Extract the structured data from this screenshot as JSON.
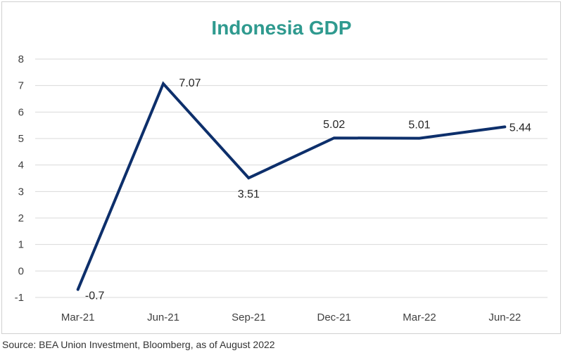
{
  "colors": {
    "title": "#2f9a8f",
    "line": "#0d2f6b",
    "grid": "#d9d9d9",
    "text": "#404040"
  },
  "source": "Source: BEA Union Investment, Bloomberg, as of August 2022",
  "chart_data": {
    "type": "line",
    "title": "Indonesia GDP",
    "xlabel": "",
    "ylabel": "",
    "categories": [
      "Mar-21",
      "Jun-21",
      "Sep-21",
      "Dec-21",
      "Mar-22",
      "Jun-22"
    ],
    "series": [
      {
        "values": [
          -0.7,
          7.07,
          3.51,
          5.02,
          5.01,
          5.44
        ]
      }
    ],
    "data_labels": [
      "-0.7",
      "7.07",
      "3.51",
      "5.02",
      "5.01",
      "5.44"
    ],
    "ylim": [
      -1,
      8
    ],
    "yticks": [
      -1,
      0,
      1,
      2,
      3,
      4,
      5,
      6,
      7,
      8
    ],
    "grid": true,
    "legend": "none"
  }
}
